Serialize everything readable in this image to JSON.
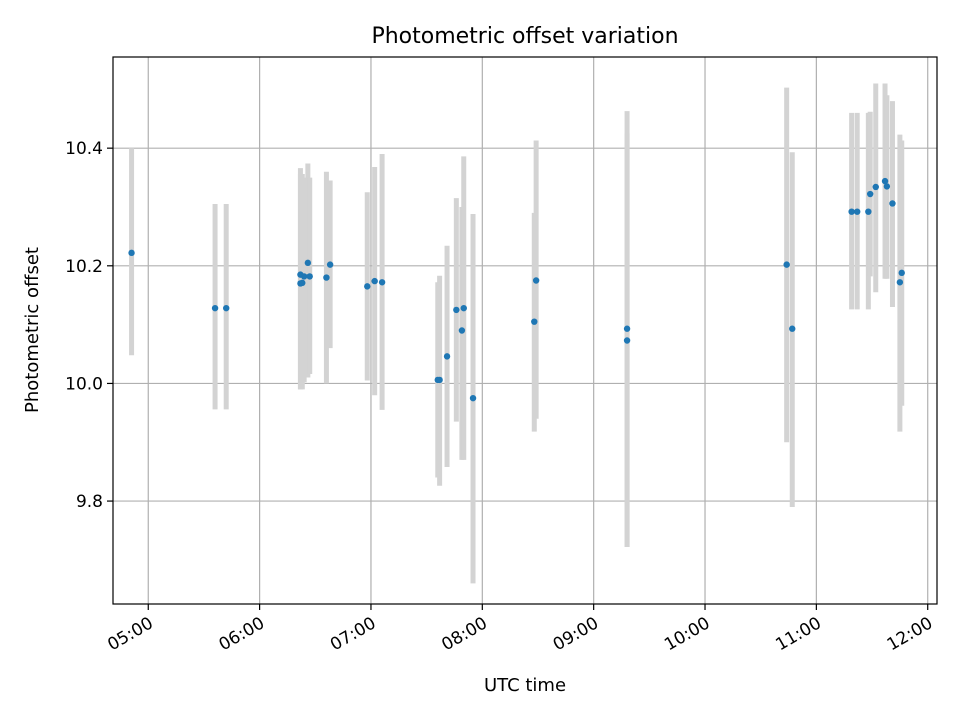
{
  "chart_data": {
    "type": "scatter",
    "title": "Photometric offset variation",
    "xlabel": "UTC time",
    "ylabel": "Photometric offset",
    "xlim": [
      "04:41",
      "12:05"
    ],
    "ylim": [
      9.625,
      10.555
    ],
    "x_ticks": [
      "05:00",
      "06:00",
      "07:00",
      "08:00",
      "09:00",
      "10:00",
      "11:00",
      "12:00"
    ],
    "y_ticks": [
      9.8,
      10.0,
      10.2,
      10.4
    ],
    "grid": true,
    "legend": "none",
    "colors": {
      "points": "#1f77b4",
      "error_bars": "#d3d3d3",
      "grid": "#b0b0b0"
    },
    "points": [
      {
        "x": "04:51",
        "y": 10.222,
        "y_low": 10.048,
        "y_high": 10.4
      },
      {
        "x": "05:36",
        "y": 10.128,
        "y_low": 9.956,
        "y_high": 10.305
      },
      {
        "x": "05:42",
        "y": 10.128,
        "y_low": 9.956,
        "y_high": 10.305
      },
      {
        "x": "06:22",
        "y": 10.185,
        "y_low": 9.99,
        "y_high": 10.366
      },
      {
        "x": "06:22",
        "y": 10.17,
        "y_low": 9.99,
        "y_high": 10.356
      },
      {
        "x": "06:23",
        "y": 10.171,
        "y_low": 9.99,
        "y_high": 10.356
      },
      {
        "x": "06:24",
        "y": 10.182,
        "y_low": 10.002,
        "y_high": 10.35
      },
      {
        "x": "06:26",
        "y": 10.205,
        "y_low": 10.01,
        "y_high": 10.374
      },
      {
        "x": "06:27",
        "y": 10.182,
        "y_low": 10.016,
        "y_high": 10.35
      },
      {
        "x": "06:36",
        "y": 10.18,
        "y_low": 10.0,
        "y_high": 10.36
      },
      {
        "x": "06:38",
        "y": 10.202,
        "y_low": 10.06,
        "y_high": 10.345
      },
      {
        "x": "06:58",
        "y": 10.165,
        "y_low": 10.005,
        "y_high": 10.325
      },
      {
        "x": "07:02",
        "y": 10.174,
        "y_low": 9.98,
        "y_high": 10.368
      },
      {
        "x": "07:06",
        "y": 10.172,
        "y_low": 9.955,
        "y_high": 10.39
      },
      {
        "x": "07:36",
        "y": 10.006,
        "y_low": 9.84,
        "y_high": 10.172
      },
      {
        "x": "07:37",
        "y": 10.006,
        "y_low": 9.826,
        "y_high": 10.183
      },
      {
        "x": "07:41",
        "y": 10.046,
        "y_low": 9.858,
        "y_high": 10.234
      },
      {
        "x": "07:46",
        "y": 10.125,
        "y_low": 9.935,
        "y_high": 10.315
      },
      {
        "x": "07:49",
        "y": 10.09,
        "y_low": 9.87,
        "y_high": 10.3
      },
      {
        "x": "07:50",
        "y": 10.128,
        "y_low": 9.87,
        "y_high": 10.386
      },
      {
        "x": "07:55",
        "y": 9.975,
        "y_low": 9.66,
        "y_high": 10.288
      },
      {
        "x": "08:28",
        "y": 10.105,
        "y_low": 9.918,
        "y_high": 10.29
      },
      {
        "x": "08:29",
        "y": 10.175,
        "y_low": 9.94,
        "y_high": 10.413
      },
      {
        "x": "09:18",
        "y": 10.093,
        "y_low": 9.722,
        "y_high": 10.463
      },
      {
        "x": "09:18",
        "y": 10.073,
        "y_low": 9.722,
        "y_high": 10.425
      },
      {
        "x": "10:44",
        "y": 10.202,
        "y_low": 9.9,
        "y_high": 10.503
      },
      {
        "x": "10:47",
        "y": 10.093,
        "y_low": 9.79,
        "y_high": 10.393
      },
      {
        "x": "11:19",
        "y": 10.292,
        "y_low": 10.126,
        "y_high": 10.46
      },
      {
        "x": "11:22",
        "y": 10.292,
        "y_low": 10.126,
        "y_high": 10.46
      },
      {
        "x": "11:28",
        "y": 10.292,
        "y_low": 10.126,
        "y_high": 10.46
      },
      {
        "x": "11:29",
        "y": 10.322,
        "y_low": 10.182,
        "y_high": 10.462
      },
      {
        "x": "11:32",
        "y": 10.334,
        "y_low": 10.155,
        "y_high": 10.51
      },
      {
        "x": "11:37",
        "y": 10.344,
        "y_low": 10.178,
        "y_high": 10.51
      },
      {
        "x": "11:38",
        "y": 10.335,
        "y_low": 10.178,
        "y_high": 10.49
      },
      {
        "x": "11:41",
        "y": 10.306,
        "y_low": 10.13,
        "y_high": 10.48
      },
      {
        "x": "11:45",
        "y": 10.172,
        "y_low": 9.918,
        "y_high": 10.423
      },
      {
        "x": "11:46",
        "y": 10.188,
        "y_low": 9.962,
        "y_high": 10.413
      }
    ]
  }
}
